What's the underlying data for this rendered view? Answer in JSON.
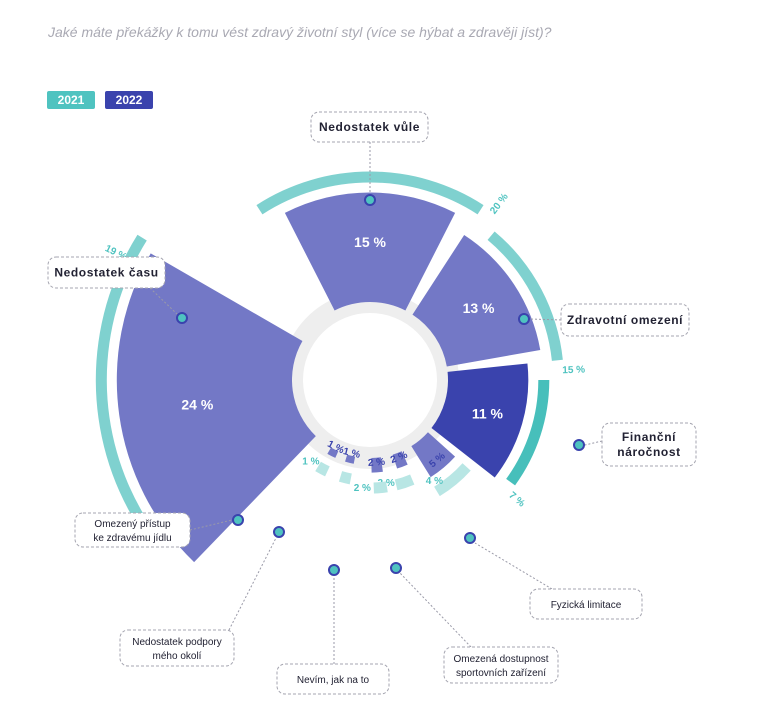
{
  "title": "Jaké máte překážky k tomu vést zdravý životní styl (více se hýbat a zdravěji jíst)?",
  "legend": [
    {
      "label": "2021",
      "color": "#4fc3c0"
    },
    {
      "label": "2022",
      "color": "#3a43ad"
    }
  ],
  "colors": {
    "inner_2022": "#7378c6",
    "inner_2022_highlight": "#3a43ad",
    "outer_2021": "#7fd1cf",
    "outer_2021_highlight": "#47bfbb",
    "outer_2021_light": "#b8e6e4",
    "center": "#eeeeee",
    "dot": "#4fc3c0",
    "dot_border": "#3a43ad",
    "label_2021": "#4fc3c0",
    "label_2022": "#3a43ad"
  },
  "chart_data": {
    "type": "radial-bar",
    "series": [
      {
        "name": "2021"
      },
      {
        "name": "2022"
      }
    ],
    "categories": [
      {
        "name": "Nedostatek vůle",
        "v2021": 20,
        "v2022": 15,
        "label2021": "20 %",
        "label2022": "15 %",
        "highlight": false
      },
      {
        "name": "Zdravotní omezení",
        "v2021": 15,
        "v2022": 13,
        "label2021": "15 %",
        "label2022": "13 %",
        "highlight": false
      },
      {
        "name": "Finanční náročnost",
        "v2021": 7,
        "v2022": 11,
        "label2021": "7 %",
        "label2022": "11 %",
        "highlight": true
      },
      {
        "name": "Fyzická limitace",
        "v2021": 4,
        "v2022": 5,
        "label2021": "4 %",
        "label2022": "5 %",
        "highlight": false
      },
      {
        "name": "Omezená dostupnost sportovních zařízení",
        "v2021": 2,
        "v2022": 2,
        "label2021": "2 %",
        "label2022": "2 %",
        "highlight": false
      },
      {
        "name": "Nevím, jak na to",
        "v2021": 2,
        "v2022": 2,
        "label2021": "2 %",
        "label2022": "2 %",
        "highlight": false
      },
      {
        "name": "Nedostatek podpory mého okolí",
        "v2021": 1,
        "v2022": 1,
        "label2021": "",
        "label2022": "1 %",
        "highlight": false
      },
      {
        "name": "Omezený přístup ke zdravému jídlu",
        "v2021": 1,
        "v2022": 1,
        "label2021": "1 %",
        "label2022": "1 %",
        "highlight": false
      },
      {
        "name": "Nedostatek času",
        "v2021": 19,
        "v2022": 24,
        "label2021": "19 %",
        "label2022": "24 %",
        "highlight": false
      }
    ],
    "callouts": [
      {
        "lines": [
          "Nedostatek vůle"
        ],
        "bold": true
      },
      {
        "lines": [
          "Zdravotní omezení"
        ],
        "bold": true
      },
      {
        "lines": [
          "Finanční",
          "náročnost"
        ],
        "bold": true
      },
      {
        "lines": [
          "Fyzická limitace"
        ],
        "bold": false
      },
      {
        "lines": [
          "Omezená dostupnost",
          "sportovních zařízení"
        ],
        "bold": false
      },
      {
        "lines": [
          "Nevím, jak na to"
        ],
        "bold": false
      },
      {
        "lines": [
          "Nedostatek podpory",
          "mého okolí"
        ],
        "bold": false
      },
      {
        "lines": [
          "Omezený přístup",
          "ke zdravému jídlu"
        ],
        "bold": false
      },
      {
        "lines": [
          "Nedostatek času"
        ],
        "bold": true
      }
    ]
  }
}
